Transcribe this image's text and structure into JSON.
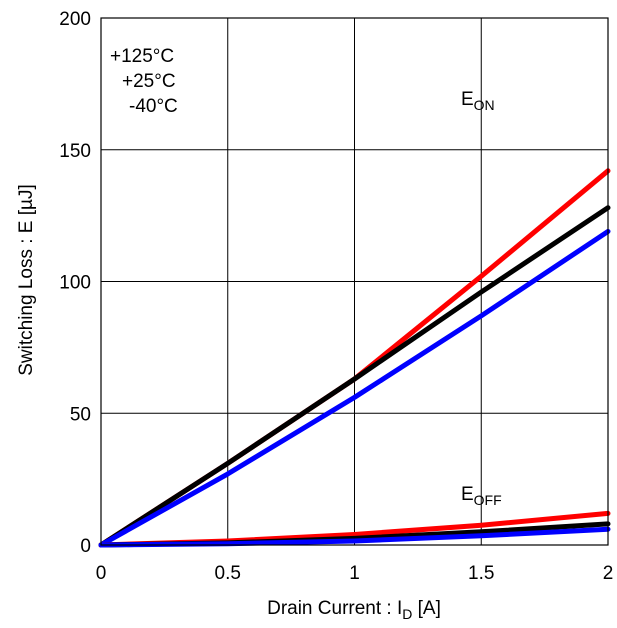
{
  "chart_data": {
    "type": "line",
    "xlabel": "Drain Current : I",
    "xlabel_sub": "D",
    "xlabel_unit": " [A]",
    "ylabel": "Switching Loss : E [µJ]",
    "xlim": [
      0,
      2
    ],
    "ylim": [
      0,
      200
    ],
    "x_ticks": [
      0,
      0.5,
      1,
      1.5,
      2
    ],
    "x_tick_labels": [
      "0",
      "0.5",
      "1",
      "1.5",
      "2"
    ],
    "y_ticks": [
      0,
      50,
      100,
      150,
      200
    ],
    "y_tick_labels": [
      "0",
      "50",
      "100",
      "150",
      "200"
    ],
    "grid": true,
    "legend_position": "top-left",
    "legend": [
      "+125°C",
      "+25°C",
      "-40°C"
    ],
    "series_labels": [
      {
        "main": "E",
        "sub": "ON",
        "x": 1.42,
        "y": 167
      },
      {
        "main": "E",
        "sub": "OFF",
        "x": 1.42,
        "y": 17
      }
    ],
    "colors": {
      "+125°C": "#ff0000",
      "+25°C": "#000000",
      "-40°C": "#0000ff"
    },
    "series": [
      {
        "name": "+125°C",
        "group": "E_ON",
        "color": "#ff0000",
        "x": [
          0,
          0.5,
          1,
          1.5,
          2
        ],
        "values": [
          0,
          31,
          63,
          102,
          142
        ]
      },
      {
        "name": "+25°C",
        "group": "E_ON",
        "color": "#000000",
        "x": [
          0,
          0.5,
          1,
          1.5,
          2
        ],
        "values": [
          0,
          31,
          63,
          96,
          128
        ]
      },
      {
        "name": "-40°C",
        "group": "E_ON",
        "color": "#0000ff",
        "x": [
          0,
          0.5,
          1,
          1.5,
          2
        ],
        "values": [
          0,
          27,
          56,
          87,
          119
        ]
      },
      {
        "name": "+125°C",
        "group": "E_OFF",
        "color": "#ff0000",
        "x": [
          0,
          0.5,
          1,
          1.5,
          2
        ],
        "values": [
          0,
          1.5,
          4,
          7.5,
          12
        ]
      },
      {
        "name": "+25°C",
        "group": "E_OFF",
        "color": "#000000",
        "x": [
          0,
          0.5,
          1,
          1.5,
          2
        ],
        "values": [
          0,
          0.8,
          2.5,
          5,
          8
        ]
      },
      {
        "name": "-40°C",
        "group": "E_OFF",
        "color": "#0000ff",
        "x": [
          0,
          0.5,
          1,
          1.5,
          2
        ],
        "values": [
          0,
          0.5,
          1.5,
          3.5,
          6
        ]
      }
    ]
  }
}
